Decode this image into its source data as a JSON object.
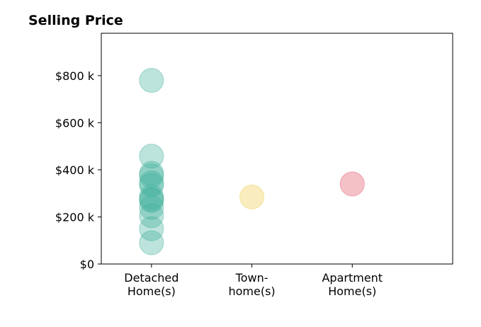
{
  "chart_data": {
    "type": "scatter",
    "title": "Selling Price",
    "categories": [
      [
        "Detached",
        "Home(s)"
      ],
      [
        "Town-",
        "home(s)"
      ],
      [
        "Apartment",
        "Home(s)"
      ]
    ],
    "y_ticks": [
      0,
      200,
      400,
      600,
      800
    ],
    "y_tick_labels": [
      "$0",
      "$200 k",
      "$400 k",
      "$600 k",
      "$800 k"
    ],
    "ylim": [
      0,
      980
    ],
    "xlim": [
      -0.5,
      3.0
    ],
    "grid": false,
    "series": [
      {
        "category_index": 0,
        "color": "#45b29d",
        "values": [
          780,
          458,
          385,
          375,
          345,
          335,
          285,
          275,
          270,
          240,
          205,
          150,
          90
        ]
      },
      {
        "category_index": 1,
        "color": "#efc94c",
        "values": [
          285
        ]
      },
      {
        "category_index": 2,
        "color": "#e05263",
        "values": [
          340
        ]
      }
    ]
  }
}
